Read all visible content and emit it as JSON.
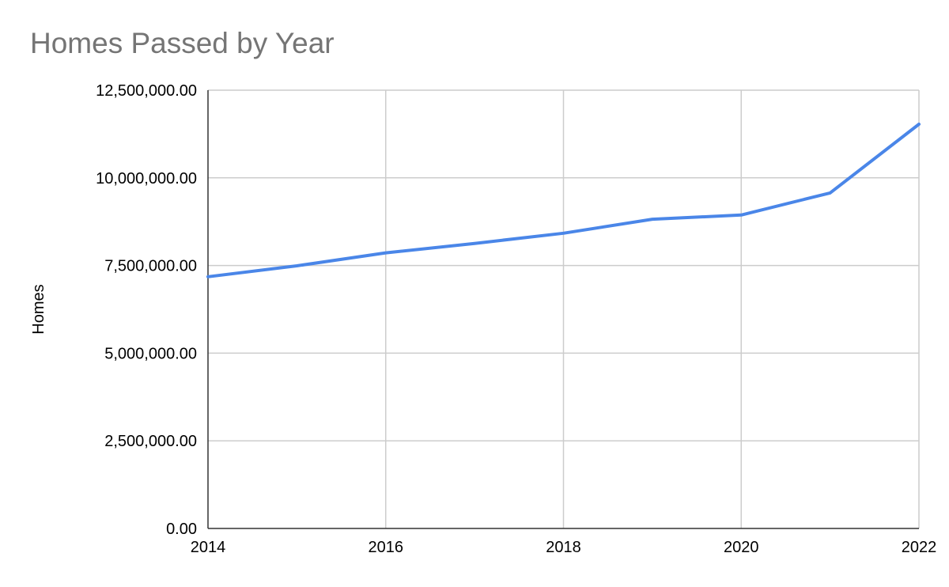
{
  "chart_data": {
    "type": "line",
    "title": "Homes Passed by Year",
    "xlabel": "",
    "ylabel": "Homes",
    "x": [
      2014,
      2015,
      2016,
      2017,
      2018,
      2019,
      2020,
      2021,
      2022
    ],
    "series": [
      {
        "values": [
          7180000,
          7490000,
          7860000,
          8130000,
          8420000,
          8820000,
          8940000,
          9570000,
          11530000
        ],
        "color": "#4a86e8"
      }
    ],
    "xlim": [
      2014,
      2022
    ],
    "ylim": [
      0,
      12500000
    ],
    "x_ticks": [
      2014,
      2016,
      2018,
      2020,
      2022
    ],
    "x_tick_labels": [
      "2014",
      "2016",
      "2018",
      "2020",
      "2022"
    ],
    "y_ticks": [
      0,
      2500000,
      5000000,
      7500000,
      10000000,
      12500000
    ],
    "y_tick_labels": [
      "0.00",
      "2,500,000.00",
      "5,000,000.00",
      "7,500,000.00",
      "10,000,000.00",
      "12,500,000.00"
    ],
    "grid": true,
    "legend": "none",
    "colors": {
      "grid": "#cccccc",
      "axis": "#333333",
      "line": "#4a86e8",
      "title": "#757575"
    }
  }
}
